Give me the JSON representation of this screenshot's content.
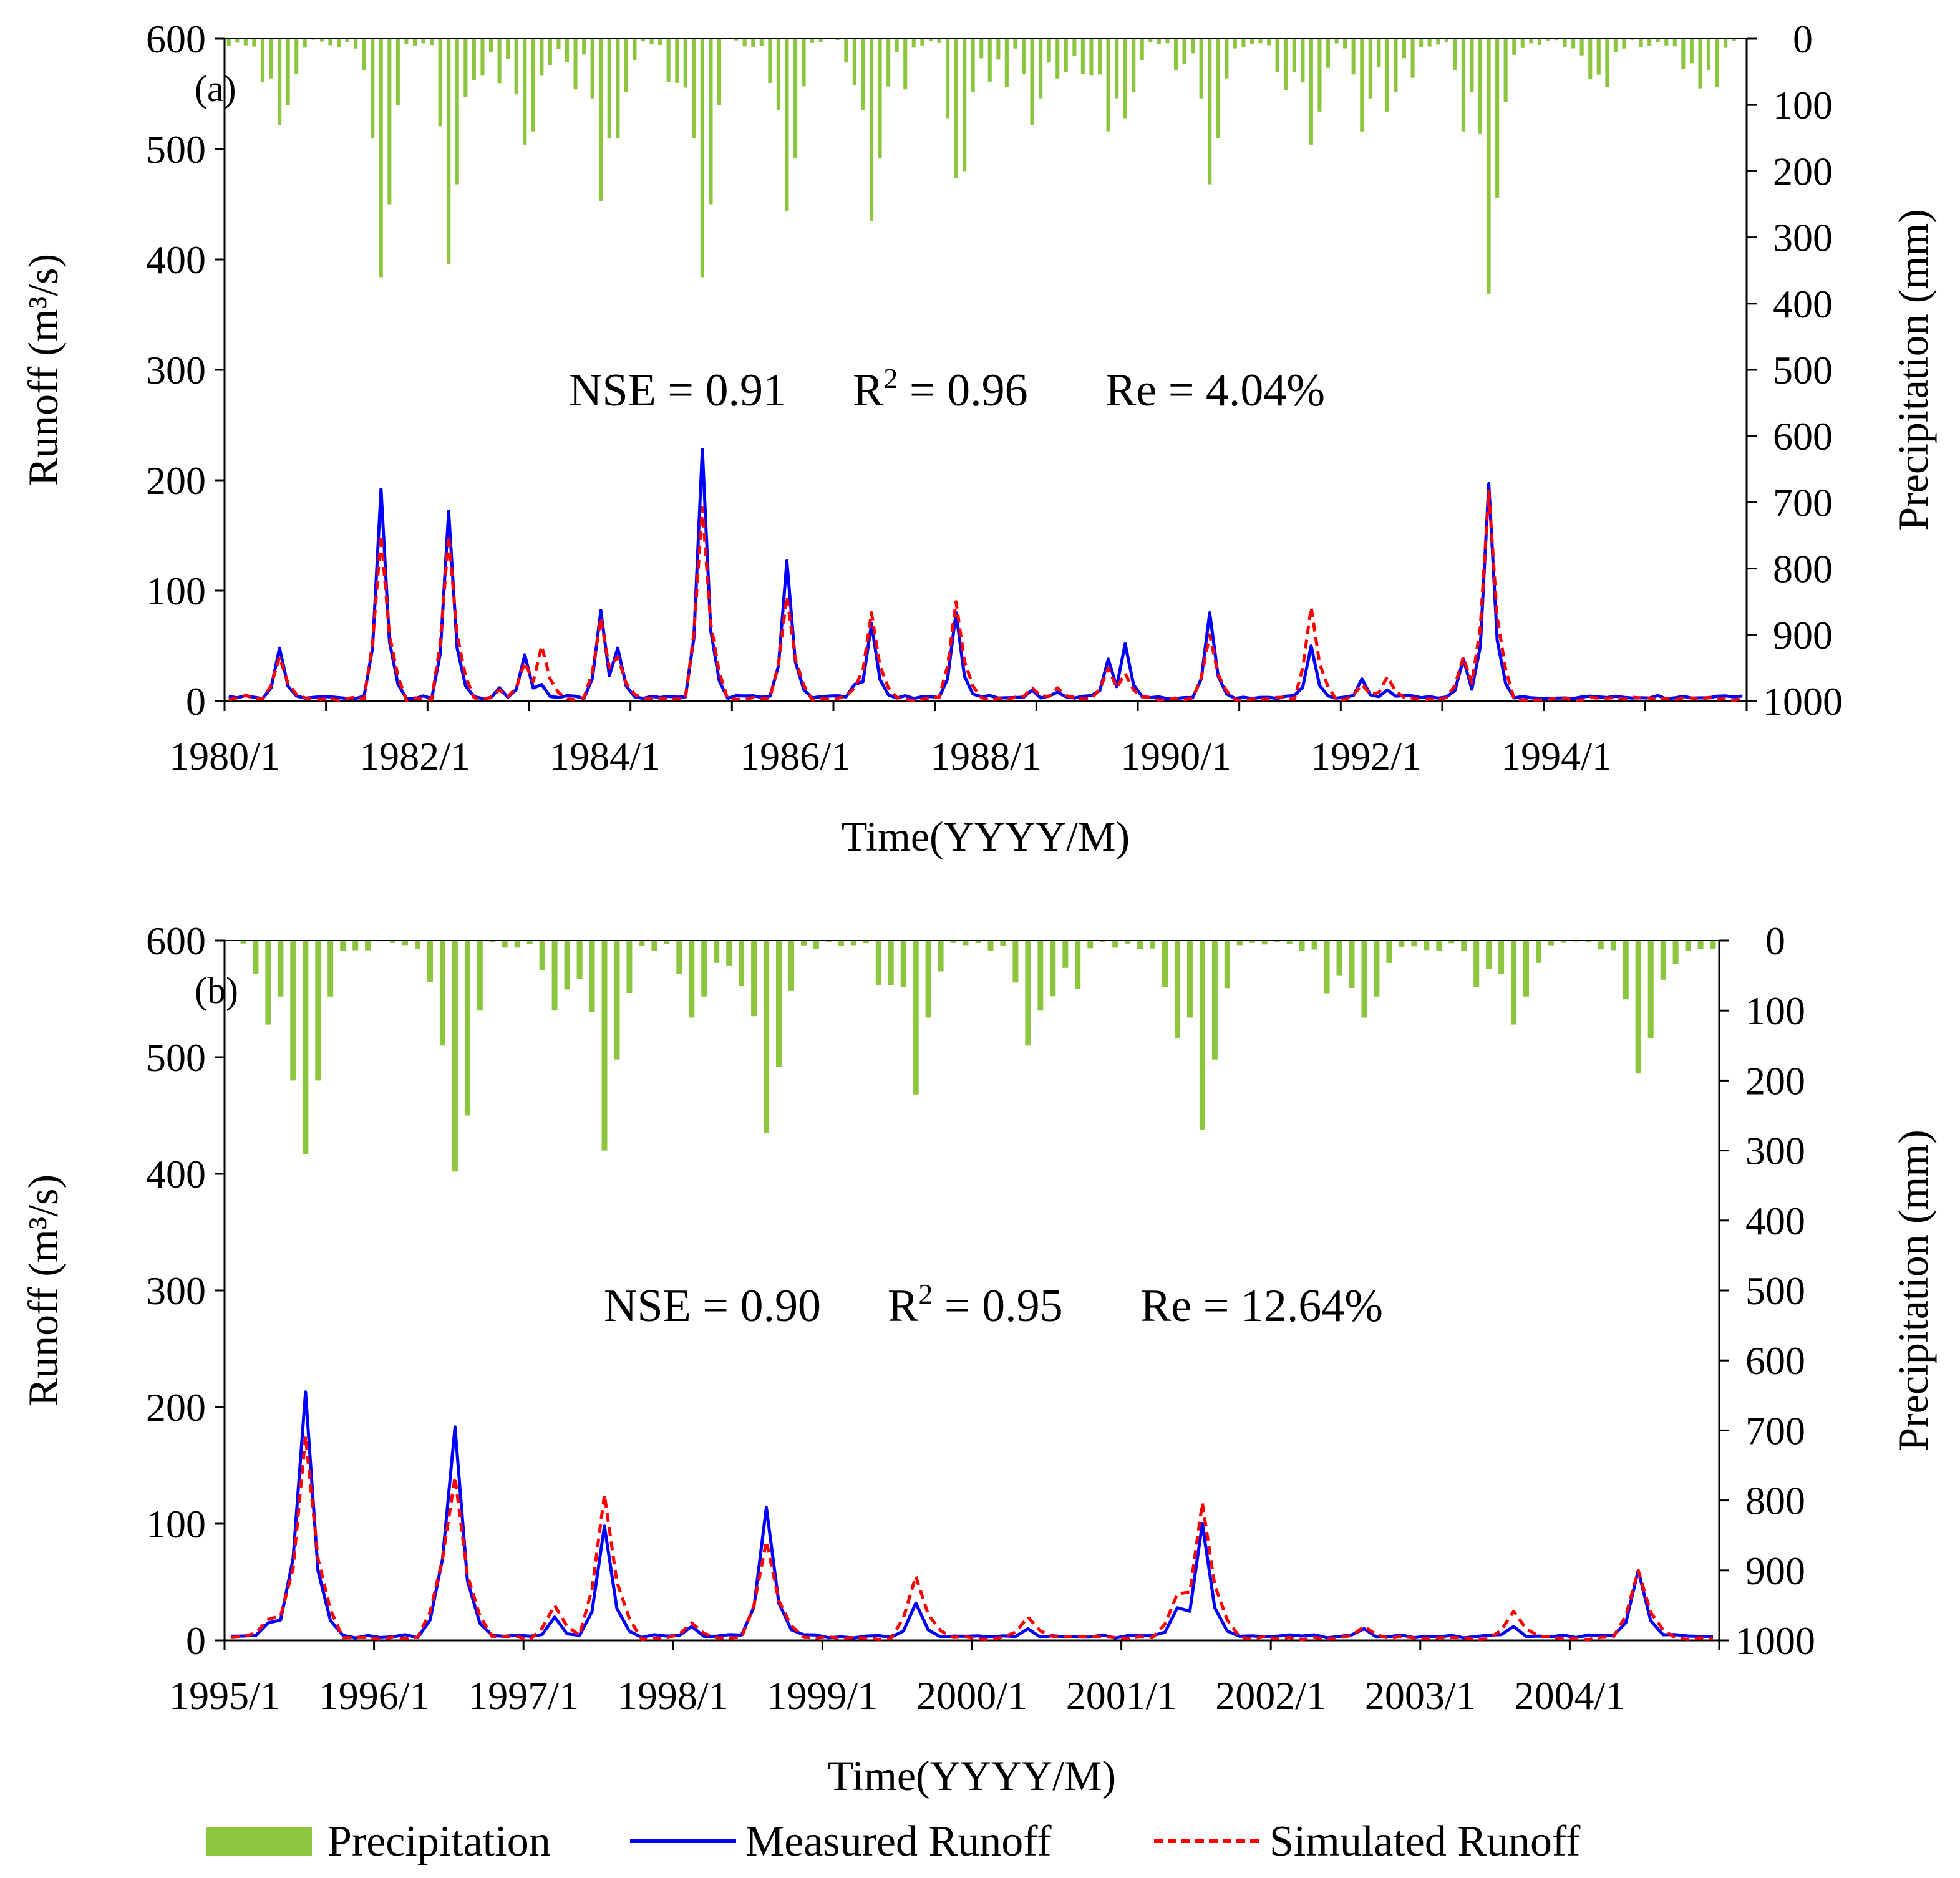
{
  "colors": {
    "precip": "#8cc63e",
    "measured": "#0000ff",
    "simulated": "#ff0000",
    "axis": "#000000"
  },
  "legend": {
    "precip": "Precipitation",
    "measured": "Measured Runoff",
    "simulated": "Simulated Runoff"
  },
  "chart_data": [
    {
      "panel": "(a)",
      "type": "line",
      "ylabel": "Runoff  (m³/s)",
      "y2label": "Precipitation  (mm)",
      "xlabel": "Time(YYYY/M)",
      "ylim": [
        0,
        600
      ],
      "y2lim": [
        0,
        1000
      ],
      "y2_inverted": true,
      "yticks": [
        0,
        100,
        200,
        300,
        400,
        500,
        600
      ],
      "y2ticks": [
        0,
        100,
        200,
        300,
        400,
        500,
        600,
        700,
        800,
        900,
        1000
      ],
      "xtick_labels": [
        "1980/1",
        "1982/1",
        "1984/1",
        "1986/1",
        "1988/1",
        "1990/1",
        "1992/1",
        "1994/1"
      ],
      "stats": {
        "nse": "NSE = 0.91",
        "r2_prefix": "R",
        "r2_value": " = 0.96",
        "re": "Re = 4.04%"
      },
      "start_year": 1980,
      "months": 180,
      "peaks": [
        {
          "m": 1.5,
          "v": 5,
          "s": 5,
          "p": 10,
          "ps": 10
        },
        {
          "m": 6,
          "v": 48,
          "s": 40,
          "p": 130,
          "ps": 100
        },
        {
          "m": 18,
          "v": 192,
          "s": 150,
          "p": 360,
          "ps": 250
        },
        {
          "m": 26,
          "v": 172,
          "s": 150,
          "p": 340,
          "ps": 220
        },
        {
          "m": 32,
          "v": 12,
          "s": 10,
          "p": 30,
          "ps": 30
        },
        {
          "m": 35,
          "v": 42,
          "s": 35,
          "p": 160,
          "ps": 140
        },
        {
          "m": 37,
          "v": 15,
          "s": 50,
          "p": 40,
          "ps": 40
        },
        {
          "m": 44,
          "v": 82,
          "s": 75,
          "p": 245,
          "ps": 150
        },
        {
          "m": 46,
          "v": 48,
          "s": 40,
          "p": 150,
          "ps": 80
        },
        {
          "m": 56,
          "v": 228,
          "s": 175,
          "p": 360,
          "ps": 250
        },
        {
          "m": 66,
          "v": 127,
          "s": 95,
          "p": 260,
          "ps": 180
        },
        {
          "m": 74,
          "v": 15,
          "s": 12,
          "p": 70,
          "ps": 60
        },
        {
          "m": 76,
          "v": 70,
          "s": 80,
          "p": 275,
          "ps": 180
        },
        {
          "m": 86,
          "v": 80,
          "s": 90,
          "p": 210,
          "ps": 200
        },
        {
          "m": 95,
          "v": 10,
          "s": 12,
          "p": 130,
          "ps": 90
        },
        {
          "m": 98,
          "v": 8,
          "s": 12,
          "p": 60,
          "ps": 50
        },
        {
          "m": 104,
          "v": 38,
          "s": 30,
          "p": 140,
          "ps": 90
        },
        {
          "m": 106,
          "v": 52,
          "s": 25,
          "p": 120,
          "ps": 80
        },
        {
          "m": 116,
          "v": 80,
          "s": 60,
          "p": 220,
          "ps": 150
        },
        {
          "m": 128,
          "v": 50,
          "s": 85,
          "p": 160,
          "ps": 110
        },
        {
          "m": 134,
          "v": 20,
          "s": 15,
          "p": 140,
          "ps": 90
        },
        {
          "m": 137,
          "v": 10,
          "s": 22,
          "p": 110,
          "ps": 70
        },
        {
          "m": 146,
          "v": 38,
          "s": 40,
          "p": 140,
          "ps": 80
        },
        {
          "m": 149,
          "v": 197,
          "s": 190,
          "p": 385,
          "ps": 240
        }
      ]
    },
    {
      "panel": "(b)",
      "type": "line",
      "ylabel": "Runoff  (m³/s)",
      "y2label": "Precipitation  (mm)",
      "xlabel": "Time(YYYY/M)",
      "ylim": [
        0,
        600
      ],
      "y2lim": [
        0,
        1000
      ],
      "y2_inverted": true,
      "yticks": [
        0,
        100,
        200,
        300,
        400,
        500,
        600
      ],
      "y2ticks": [
        0,
        100,
        200,
        300,
        400,
        500,
        600,
        700,
        800,
        900,
        1000
      ],
      "xtick_labels": [
        "1995/1",
        "1996/1",
        "1997/1",
        "1998/1",
        "1999/1",
        "2000/1",
        "2001/1",
        "2002/1",
        "2003/1",
        "2004/1"
      ],
      "stats": {
        "nse": "NSE = 0.90",
        "r2_prefix": "R",
        "r2_value": " = 0.95",
        "re": "Re = 12.64%"
      },
      "start_year": 1995,
      "months": 120,
      "peaks": [
        {
          "m": 3,
          "v": 15,
          "s": 18,
          "p": 120,
          "ps": 80
        },
        {
          "m": 5,
          "v": 70,
          "s": 60,
          "p": 200,
          "ps": 130
        },
        {
          "m": 6,
          "v": 213,
          "s": 175,
          "p": 305,
          "ps": 200
        },
        {
          "m": 17,
          "v": 70,
          "s": 70,
          "p": 100,
          "ps": 70
        },
        {
          "m": 18,
          "v": 183,
          "s": 140,
          "p": 330,
          "ps": 250
        },
        {
          "m": 26,
          "v": 20,
          "s": 30,
          "p": 100,
          "ps": 70
        },
        {
          "m": 30,
          "v": 98,
          "s": 125,
          "p": 300,
          "ps": 170
        },
        {
          "m": 37,
          "v": 12,
          "s": 15,
          "p": 110,
          "ps": 80
        },
        {
          "m": 43,
          "v": 114,
          "s": 85,
          "p": 275,
          "ps": 180
        },
        {
          "m": 55,
          "v": 32,
          "s": 55,
          "p": 220,
          "ps": 110
        },
        {
          "m": 64,
          "v": 10,
          "s": 20,
          "p": 150,
          "ps": 100
        },
        {
          "m": 76,
          "v": 28,
          "s": 40,
          "p": 140,
          "ps": 110
        },
        {
          "m": 78,
          "v": 100,
          "s": 118,
          "p": 270,
          "ps": 170
        },
        {
          "m": 91,
          "v": 10,
          "s": 12,
          "p": 110,
          "ps": 80
        },
        {
          "m": 103,
          "v": 12,
          "s": 25,
          "p": 120,
          "ps": 80
        },
        {
          "m": 113,
          "v": 60,
          "s": 60,
          "p": 190,
          "ps": 140
        }
      ]
    }
  ]
}
